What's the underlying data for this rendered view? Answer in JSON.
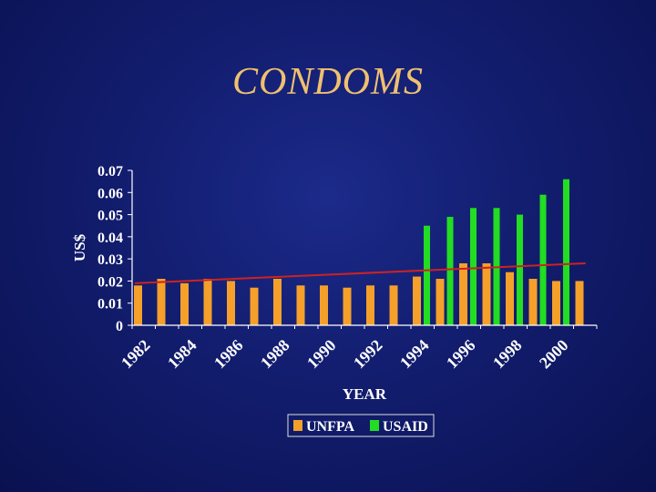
{
  "slide": {
    "title": "CONDOMS"
  },
  "colors": {
    "unfpa": "#f5a02a",
    "usaid": "#22dd22",
    "trend": "#cc2222",
    "axis": "#ffffff"
  },
  "chart_data": {
    "type": "bar",
    "xlabel": "YEAR",
    "ylabel": "US$",
    "ylim": [
      0,
      0.07
    ],
    "yticks": [
      "0",
      "0.01",
      "0.02",
      "0.03",
      "0.04",
      "0.05",
      "0.06",
      "0.07"
    ],
    "categories": [
      "1982",
      "1983",
      "1984",
      "1985",
      "1986",
      "1987",
      "1988",
      "1989",
      "1990",
      "1991",
      "1992",
      "1993",
      "1994",
      "1995",
      "1996",
      "1997",
      "1998",
      "1999",
      "2000",
      "2001"
    ],
    "xtick_labels": [
      "1982",
      "1984",
      "1986",
      "1988",
      "1990",
      "1992",
      "1994",
      "1996",
      "1998",
      "2000"
    ],
    "series": [
      {
        "name": "UNFPA",
        "values": [
          0.018,
          0.021,
          0.019,
          0.021,
          0.02,
          0.017,
          0.021,
          0.018,
          0.018,
          0.017,
          0.018,
          0.018,
          0.022,
          0.021,
          0.028,
          0.028,
          0.024,
          0.021,
          0.02,
          0.02
        ]
      },
      {
        "name": "USAID",
        "values": [
          null,
          null,
          null,
          null,
          null,
          null,
          null,
          null,
          null,
          null,
          null,
          null,
          0.045,
          0.049,
          0.053,
          0.053,
          0.05,
          0.059,
          0.066,
          null
        ]
      }
    ],
    "trendline": {
      "from": [
        0,
        0.019
      ],
      "to": [
        19.4,
        0.028
      ]
    },
    "legend": {
      "position": "bottom"
    }
  }
}
